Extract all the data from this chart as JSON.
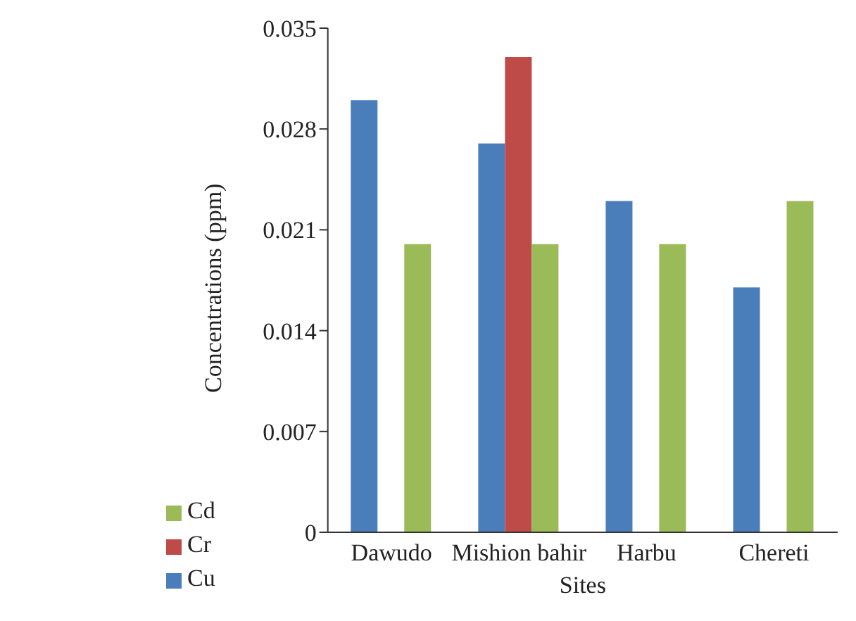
{
  "chart_data": {
    "type": "bar",
    "xlabel": "Sites",
    "ylabel": "Concentrations (ppm)",
    "categories": [
      "Dawudo",
      "Mishion bahir",
      "Harbu",
      "Chereti"
    ],
    "series": [
      {
        "name": "Cu",
        "color": "#4a7ebb",
        "values": [
          0.03,
          0.027,
          0.023,
          0.017
        ]
      },
      {
        "name": "Cr",
        "color": "#be4b48",
        "values": [
          null,
          0.033,
          null,
          null
        ]
      },
      {
        "name": "Cd",
        "color": "#9bbb59",
        "values": [
          0.02,
          0.02,
          0.02,
          0.023
        ]
      }
    ],
    "ylim": [
      0,
      0.035
    ],
    "yticks": [
      0,
      0.007,
      0.014,
      0.021,
      0.028,
      0.035
    ],
    "grid": false,
    "legend": "bottom left"
  }
}
